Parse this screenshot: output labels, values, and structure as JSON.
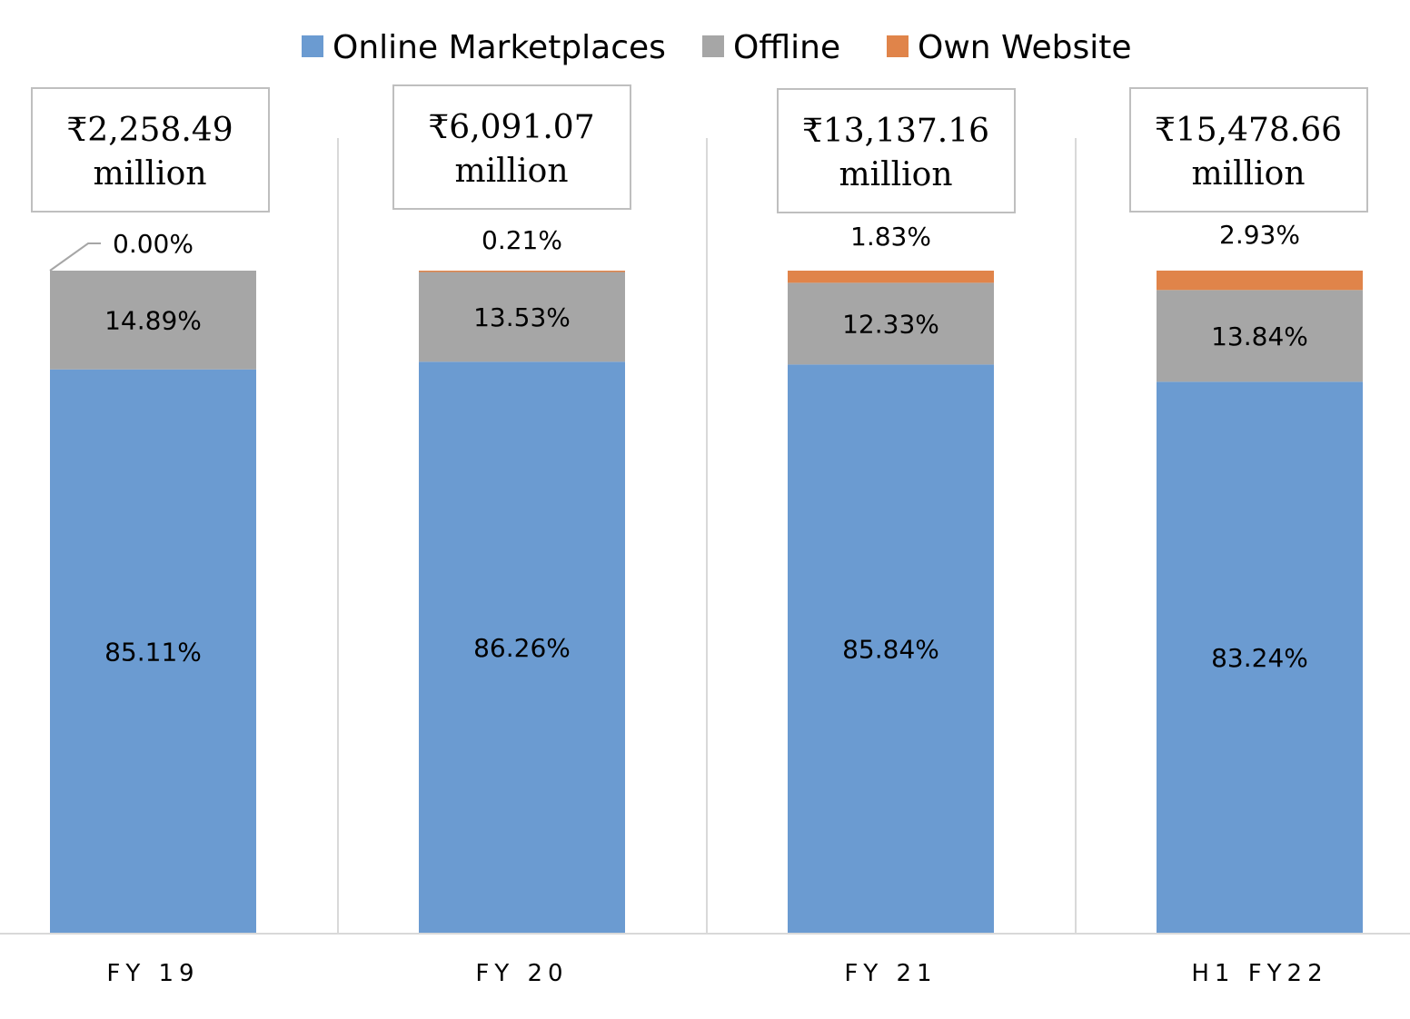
{
  "chart_data": {
    "type": "bar",
    "stacked": true,
    "percent_stacked": true,
    "categories": [
      "FY 19",
      "FY 20",
      "FY 21",
      "H1 FY22"
    ],
    "series": [
      {
        "name": "Online Marketplaces",
        "values": [
          85.11,
          86.26,
          85.84,
          83.24
        ],
        "labels": [
          "85.11%",
          "86.26%",
          "85.84%",
          "83.24%"
        ],
        "color": "#6b9bd1"
      },
      {
        "name": "Offline",
        "values": [
          14.89,
          13.53,
          12.33,
          13.84
        ],
        "labels": [
          "14.89%",
          "13.53%",
          "12.33%",
          "13.84%"
        ],
        "color": "#a6a6a6"
      },
      {
        "name": "Own Website",
        "values": [
          0.0,
          0.21,
          1.83,
          2.93
        ],
        "labels": [
          "0.00%",
          "0.21%",
          "1.83%",
          "2.93%"
        ],
        "color": "#e0844a"
      }
    ],
    "totals": [
      {
        "amount": "₹2,258.49",
        "unit": "million"
      },
      {
        "amount": "₹6,091.07",
        "unit": "million"
      },
      {
        "amount": "₹13,137.16",
        "unit": "million"
      },
      {
        "amount": "₹15,478.66",
        "unit": "million"
      }
    ],
    "ylim": [
      0,
      100
    ],
    "legend_position": "top",
    "grid": false,
    "title": "",
    "xlabel": "",
    "ylabel": ""
  }
}
